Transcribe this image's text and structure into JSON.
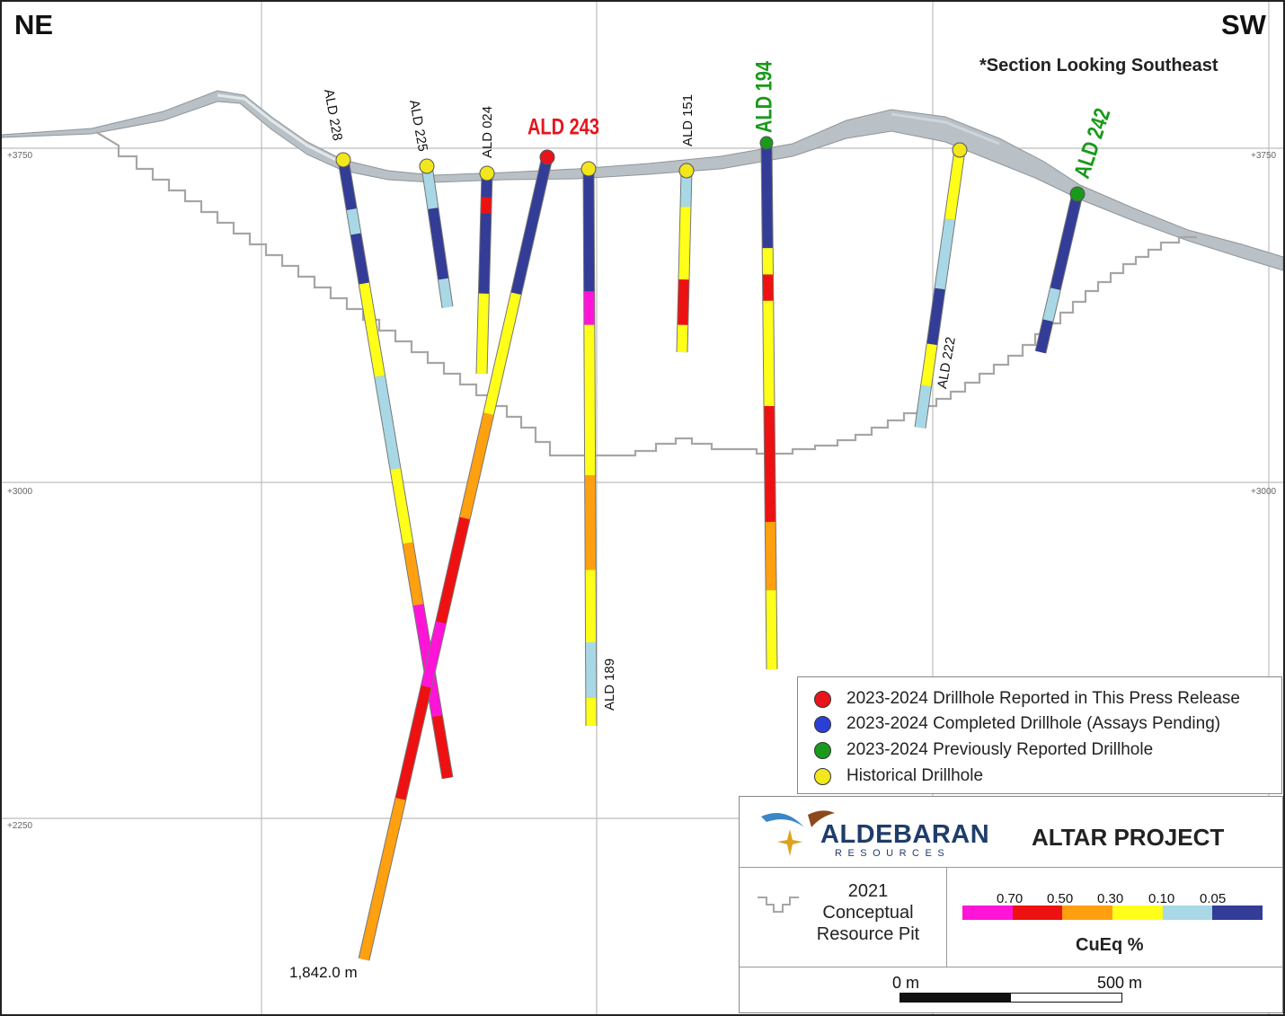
{
  "directions": {
    "left": "NE",
    "right": "SW"
  },
  "note": "*Section Looking Southeast",
  "elevations": {
    "e3750": "+3750",
    "e3000": "+3000",
    "e2250": "+2250"
  },
  "max_depth_label": "1,842.0 m",
  "drillholes": [
    {
      "name": "ALD 228",
      "status": "historical"
    },
    {
      "name": "ALD 225",
      "status": "historical"
    },
    {
      "name": "ALD 024",
      "status": "historical"
    },
    {
      "name": "ALD 243",
      "status": "reported_this_release"
    },
    {
      "name": "ALD 189",
      "status": "historical"
    },
    {
      "name": "ALD 151",
      "status": "historical"
    },
    {
      "name": "ALD 194",
      "status": "previously_reported"
    },
    {
      "name": "ALD 222",
      "status": "historical"
    },
    {
      "name": "ALD 242",
      "status": "previously_reported"
    }
  ],
  "legend": {
    "items": [
      {
        "label": "2023-2024 Drillhole Reported in This Press Release",
        "color": "#e8141c"
      },
      {
        "label": "2023-2024 Completed Drillhole (Assays Pending)",
        "color": "#2a3fd6"
      },
      {
        "label": "2023-2024 Previously Reported Drillhole",
        "color": "#1a9a1a"
      },
      {
        "label": "Historical Drillhole",
        "color": "#f2e61c"
      }
    ]
  },
  "title_box": {
    "company": "ALDEBARAN",
    "company_sub": "RESOURCES",
    "project": "ALTAR PROJECT",
    "pit_label": [
      "2021",
      "Conceptual",
      "Resource Pit"
    ],
    "grade_scale": {
      "ticks": [
        "0.70",
        "0.50",
        "0.30",
        "0.10",
        "0.05"
      ],
      "colors": [
        "#ff14d8",
        "#ee1111",
        "#ffa010",
        "#ffff1a",
        "#a8d8e6",
        "#333c96"
      ],
      "unit": "CuEq %"
    },
    "scale_bar": {
      "start": "0 m",
      "end": "500 m"
    }
  },
  "colors": {
    "magenta": "#ff14d8",
    "red": "#ee1111",
    "orange": "#ffa010",
    "yellow": "#ffff1a",
    "lightblue": "#a8d8e6",
    "navy": "#333c96",
    "label_red": "#e8141c",
    "label_green": "#1a9a1a"
  }
}
